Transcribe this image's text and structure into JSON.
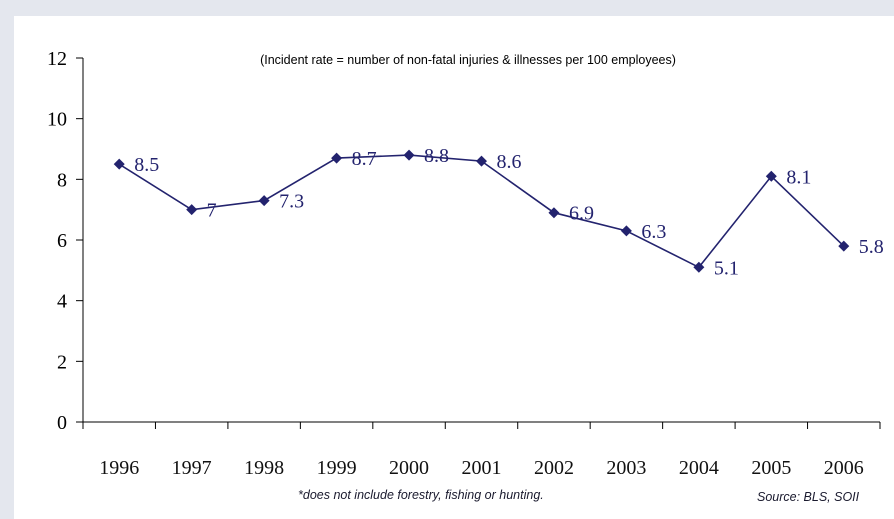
{
  "chart_data": {
    "type": "line",
    "subtitle": "(Incident rate = number of non-fatal injuries & illnesses per 100 employees)",
    "categories": [
      "1996",
      "1997",
      "1998",
      "1999",
      "2000",
      "2001",
      "2002",
      "2003",
      "2004",
      "2005",
      "2006"
    ],
    "series": [
      {
        "values": [
          8.5,
          7,
          7.3,
          8.7,
          8.8,
          8.6,
          6.9,
          6.3,
          5.1,
          8.1,
          5.8
        ],
        "labels": [
          "8.5",
          "7",
          "7.3",
          "8.7",
          "8.8",
          "8.6",
          "6.9",
          "6.3",
          "5.1",
          "8.1",
          "5.8"
        ]
      }
    ],
    "y_ticks": [
      "0",
      "2",
      "4",
      "6",
      "8",
      "10",
      "12"
    ],
    "ylim": [
      0,
      12
    ],
    "grid": false,
    "legend": "none",
    "colors": {
      "series": "#23236e",
      "axis": "#000000",
      "note": "#2b2b9a"
    }
  },
  "footnote": "*does not include forestry, fishing or hunting.",
  "source": "Source:  BLS, SOII"
}
